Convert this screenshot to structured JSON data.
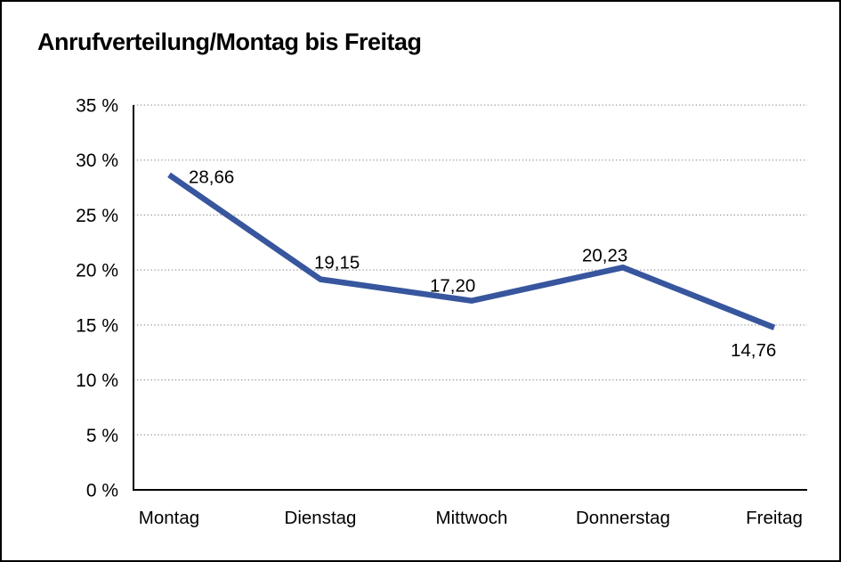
{
  "chart_data": {
    "type": "line",
    "title": "Anrufverteilung/Montag bis Freitag",
    "categories": [
      "Montag",
      "Dienstag",
      "Mittwoch",
      "Donnerstag",
      "Freitag"
    ],
    "series": [
      {
        "name": "Anrufverteilung",
        "values": [
          28.66,
          19.15,
          17.2,
          20.23,
          14.76
        ],
        "value_labels": [
          "28,66",
          "19,15",
          "17,20",
          "20,23",
          "14,76"
        ]
      }
    ],
    "xlabel": "",
    "ylabel": "",
    "ylim": [
      0,
      35
    ],
    "y_tick_step": 5,
    "y_ticks": [
      0,
      5,
      10,
      15,
      20,
      25,
      30,
      35
    ],
    "y_tick_labels": [
      "0 %",
      "5 %",
      "10 %",
      "15 %",
      "20 %",
      "25 %",
      "30 %",
      "35 %"
    ],
    "grid": "horizontal-dotted",
    "legend_position": "none",
    "colors": {
      "line": "#37569E",
      "grid": "#999999",
      "axis": "#000000",
      "text": "#000000",
      "background": "#ffffff",
      "border": "#000000"
    }
  }
}
